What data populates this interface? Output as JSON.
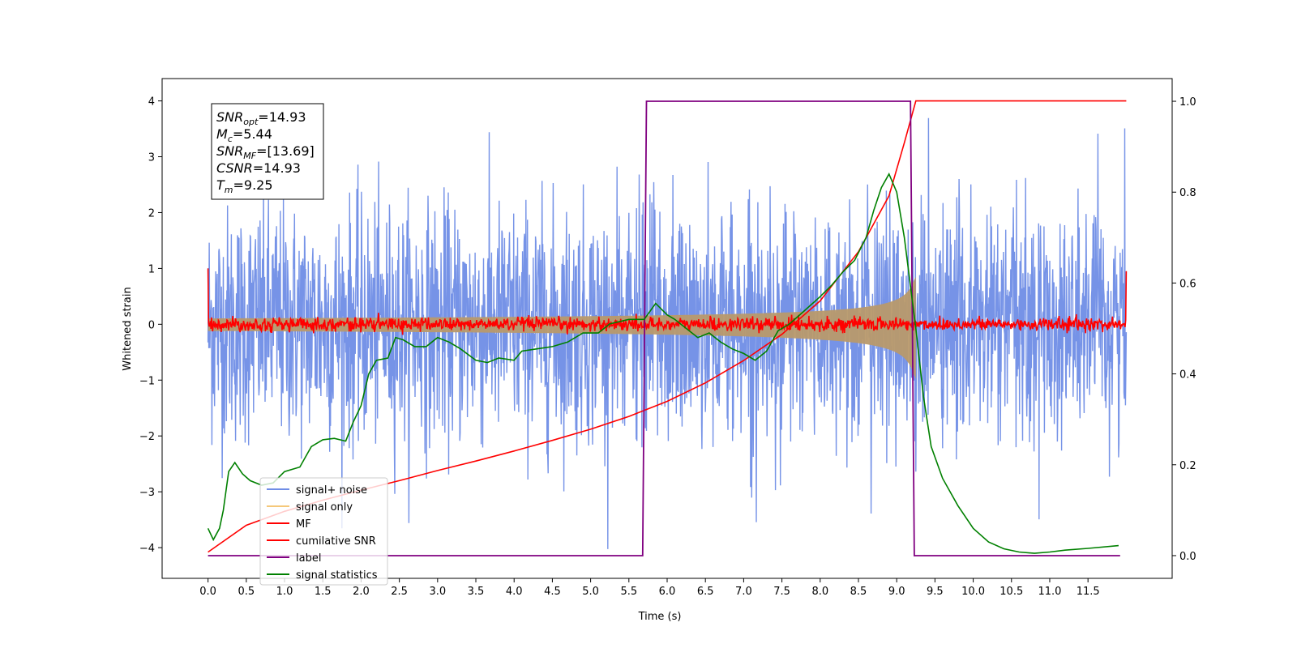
{
  "chart_data": {
    "type": "line",
    "xlabel": "Time (s)",
    "ylabel": "Whitened strain",
    "xlim": [
      -0.6,
      12.6
    ],
    "ylim": [
      -4.55,
      4.4
    ],
    "y2lim": [
      -0.05,
      1.05
    ],
    "x_ticks": [
      0.0,
      0.5,
      1.0,
      1.5,
      2.0,
      2.5,
      3.0,
      3.5,
      4.0,
      4.5,
      5.0,
      5.5,
      6.0,
      6.5,
      7.0,
      7.5,
      8.0,
      8.5,
      9.0,
      9.5,
      10.0,
      10.5,
      11.0,
      11.5
    ],
    "x_tick_labels": [
      "0.0",
      "0.5",
      "1.0",
      "1.5",
      "2.0",
      "2.5",
      "3.0",
      "3.5",
      "4.0",
      "4.5",
      "5.0",
      "5.5",
      "6.0",
      "6.5",
      "7.0",
      "7.5",
      "8.0",
      "8.5",
      "9.0",
      "9.5",
      "10.0",
      "10.5",
      "11.0",
      "11.5"
    ],
    "y_ticks": [
      -4,
      -3,
      -2,
      -1,
      0,
      1,
      2,
      3,
      4
    ],
    "y_tick_labels": [
      "−4",
      "−3",
      "−2",
      "−1",
      "0",
      "1",
      "2",
      "3",
      "4"
    ],
    "y2_ticks": [
      0.0,
      0.2,
      0.4,
      0.6,
      0.8,
      1.0
    ],
    "y2_tick_labels": [
      "0.0",
      "0.2",
      "0.4",
      "0.6",
      "0.8",
      "1.0"
    ],
    "legend": {
      "placement": "lower-left",
      "entries": [
        "signal+ noise",
        "signal only",
        "MF",
        "cumilative SNR",
        "label",
        "signal statistics"
      ]
    },
    "annotation_box": {
      "lines": [
        {
          "sym": "SNR",
          "sub": "opt",
          "value": "=14.93"
        },
        {
          "sym": "M",
          "sub": "c",
          "value": "=5.44"
        },
        {
          "sym": "SNR",
          "sub": "MF",
          "value": "=[13.69]"
        },
        {
          "sym": "CSNR",
          "sub": "",
          "value": "=14.93"
        },
        {
          "sym": "T",
          "sub": "m",
          "value": "=9.25"
        }
      ]
    },
    "series": [
      {
        "name": "signal+ noise",
        "color": "#6f8de6",
        "axis": "left",
        "kind": "noise",
        "x_range": [
          0.0,
          12.0
        ],
        "amplitude_range": [
          -4.15,
          4.0
        ]
      },
      {
        "name": "signal only",
        "color": "#f5b65f",
        "axis": "left",
        "kind": "chirp",
        "x_range": [
          0.0,
          9.25
        ],
        "peak_abs": 0.85
      },
      {
        "name": "MF",
        "color": "#ff0000",
        "axis": "left",
        "kind": "noise",
        "x_range": [
          0.0,
          12.0
        ],
        "amplitude_range": [
          -0.2,
          1.0
        ]
      },
      {
        "name": "cumilative SNR",
        "color": "#ff0000",
        "axis": "left",
        "x": [
          0.0,
          0.5,
          1.0,
          1.5,
          2.0,
          2.5,
          3.0,
          3.5,
          4.0,
          4.5,
          5.0,
          5.5,
          6.0,
          6.5,
          7.0,
          7.5,
          8.0,
          8.5,
          8.9,
          9.1,
          9.25,
          9.5,
          12.0
        ],
        "y": [
          -4.08,
          -3.6,
          -3.35,
          -3.15,
          -2.97,
          -2.8,
          -2.62,
          -2.45,
          -2.27,
          -2.08,
          -1.88,
          -1.65,
          -1.38,
          -1.05,
          -0.65,
          -0.18,
          0.42,
          1.3,
          2.3,
          3.25,
          4.0,
          4.0,
          4.0
        ]
      },
      {
        "name": "label",
        "color": "#800080",
        "axis": "right",
        "x": [
          0.0,
          5.68,
          5.73,
          9.18,
          9.23,
          11.92
        ],
        "y": [
          0.0,
          0.0,
          1.0,
          1.0,
          0.0,
          0.0
        ]
      },
      {
        "name": "signal statistics",
        "color": "#008000",
        "axis": "right",
        "x": [
          0.0,
          0.07,
          0.15,
          0.2,
          0.27,
          0.35,
          0.45,
          0.55,
          0.7,
          0.85,
          1.0,
          1.2,
          1.35,
          1.5,
          1.65,
          1.8,
          1.9,
          2.0,
          2.1,
          2.2,
          2.35,
          2.45,
          2.55,
          2.7,
          2.85,
          3.0,
          3.15,
          3.3,
          3.5,
          3.65,
          3.8,
          4.0,
          4.1,
          4.3,
          4.5,
          4.7,
          4.9,
          5.1,
          5.25,
          5.5,
          5.7,
          5.85,
          6.0,
          6.1,
          6.25,
          6.4,
          6.55,
          6.7,
          6.85,
          7.0,
          7.15,
          7.3,
          7.45,
          7.6,
          7.8,
          8.0,
          8.15,
          8.3,
          8.45,
          8.6,
          8.7,
          8.8,
          8.9,
          9.0,
          9.1,
          9.25,
          9.35,
          9.45,
          9.6,
          9.8,
          10.0,
          10.2,
          10.4,
          10.6,
          10.8,
          11.0,
          11.2,
          11.5,
          11.9
        ],
        "y": [
          0.06,
          0.035,
          0.06,
          0.1,
          0.185,
          0.205,
          0.18,
          0.165,
          0.155,
          0.16,
          0.185,
          0.195,
          0.24,
          0.255,
          0.258,
          0.252,
          0.295,
          0.33,
          0.4,
          0.43,
          0.435,
          0.48,
          0.475,
          0.46,
          0.46,
          0.48,
          0.47,
          0.455,
          0.43,
          0.425,
          0.435,
          0.43,
          0.45,
          0.455,
          0.46,
          0.47,
          0.49,
          0.49,
          0.51,
          0.52,
          0.52,
          0.555,
          0.53,
          0.52,
          0.5,
          0.48,
          0.49,
          0.47,
          0.455,
          0.445,
          0.43,
          0.45,
          0.495,
          0.51,
          0.54,
          0.57,
          0.595,
          0.625,
          0.65,
          0.7,
          0.76,
          0.81,
          0.84,
          0.8,
          0.7,
          0.5,
          0.35,
          0.24,
          0.17,
          0.11,
          0.06,
          0.03,
          0.015,
          0.008,
          0.005,
          0.008,
          0.012,
          0.016,
          0.022
        ]
      }
    ]
  }
}
